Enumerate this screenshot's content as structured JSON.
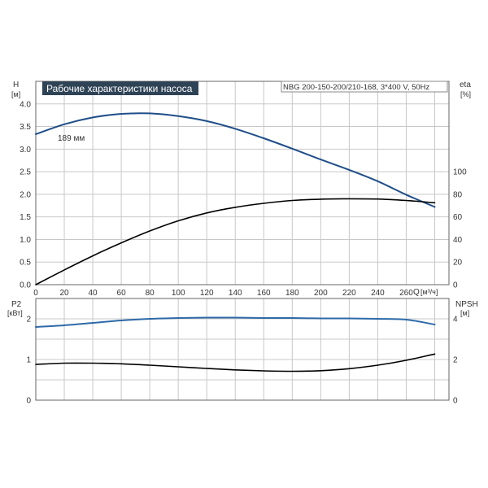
{
  "chart_data": [
    {
      "type": "line",
      "title": "Рабочие характеристики насоса",
      "subtitle": "NBG 200-150-200/210-168, 3*400 V, 50Hz",
      "xlabel": "Q",
      "xunit": "[м³/ч]",
      "xlim": [
        0,
        290
      ],
      "x_ticks": [
        0,
        20,
        40,
        60,
        80,
        100,
        120,
        140,
        160,
        180,
        200,
        220,
        240,
        260
      ],
      "left_axis": {
        "label": "H",
        "unit": "[м]",
        "ylim": [
          0,
          4.5
        ],
        "ticks": [
          "0.0",
          "0.5",
          "1.0",
          "1.5",
          "2.0",
          "2.5",
          "3.0",
          "3.5",
          "4.0"
        ]
      },
      "right_axis": {
        "label": "eta",
        "unit": "[%]",
        "ylim": [
          0,
          180
        ],
        "ticks": [
          "0",
          "20",
          "40",
          "60",
          "80",
          "100"
        ]
      },
      "annotations": [
        {
          "text": "189 мм"
        }
      ],
      "series": [
        {
          "axis": "left",
          "color": "#1f4e89",
          "points": [
            [
              0,
              3.33
            ],
            [
              20,
              3.55
            ],
            [
              40,
              3.7
            ],
            [
              60,
              3.78
            ],
            [
              80,
              3.79
            ],
            [
              100,
              3.73
            ],
            [
              120,
              3.62
            ],
            [
              140,
              3.45
            ],
            [
              160,
              3.24
            ],
            [
              180,
              3.01
            ],
            [
              200,
              2.77
            ],
            [
              220,
              2.54
            ],
            [
              240,
              2.29
            ],
            [
              260,
              1.99
            ],
            [
              280,
              1.72
            ]
          ]
        },
        {
          "axis": "right",
          "color": "#000000",
          "points": [
            [
              0,
              0
            ],
            [
              20,
              13
            ],
            [
              40,
              25.5
            ],
            [
              60,
              37
            ],
            [
              80,
              47.5
            ],
            [
              100,
              56.5
            ],
            [
              120,
              63.5
            ],
            [
              140,
              68.5
            ],
            [
              160,
              72
            ],
            [
              180,
              74.5
            ],
            [
              200,
              75.7
            ],
            [
              220,
              76
            ],
            [
              240,
              75.8
            ],
            [
              260,
              74.5
            ],
            [
              280,
              72.5
            ]
          ]
        }
      ]
    },
    {
      "type": "line",
      "xlim": [
        0,
        290
      ],
      "left_axis": {
        "label": "P2",
        "unit": "[кВт]",
        "ylim": [
          0,
          2.5
        ],
        "ticks": [
          "0",
          "1",
          "2"
        ]
      },
      "right_axis": {
        "label": "NPSH",
        "unit": "[м]",
        "ylim": [
          0,
          5
        ],
        "ticks": [
          "0",
          "2",
          "4"
        ]
      },
      "series": [
        {
          "axis": "left",
          "color": "#2e6aa8",
          "points": [
            [
              0,
              1.8
            ],
            [
              20,
              1.84
            ],
            [
              40,
              1.9
            ],
            [
              60,
              1.96
            ],
            [
              80,
              2.0
            ],
            [
              100,
              2.02
            ],
            [
              120,
              2.03
            ],
            [
              140,
              2.03
            ],
            [
              160,
              2.02
            ],
            [
              180,
              2.02
            ],
            [
              200,
              2.01
            ],
            [
              220,
              2.01
            ],
            [
              240,
              2.0
            ],
            [
              260,
              1.98
            ],
            [
              280,
              1.86
            ]
          ]
        },
        {
          "axis": "right",
          "color": "#000000",
          "points": [
            [
              0,
              1.76
            ],
            [
              20,
              1.82
            ],
            [
              40,
              1.82
            ],
            [
              60,
              1.79
            ],
            [
              80,
              1.72
            ],
            [
              100,
              1.64
            ],
            [
              120,
              1.56
            ],
            [
              140,
              1.49
            ],
            [
              160,
              1.44
            ],
            [
              180,
              1.42
            ],
            [
              200,
              1.45
            ],
            [
              220,
              1.55
            ],
            [
              240,
              1.72
            ],
            [
              260,
              1.96
            ],
            [
              280,
              2.27
            ]
          ]
        }
      ]
    }
  ]
}
